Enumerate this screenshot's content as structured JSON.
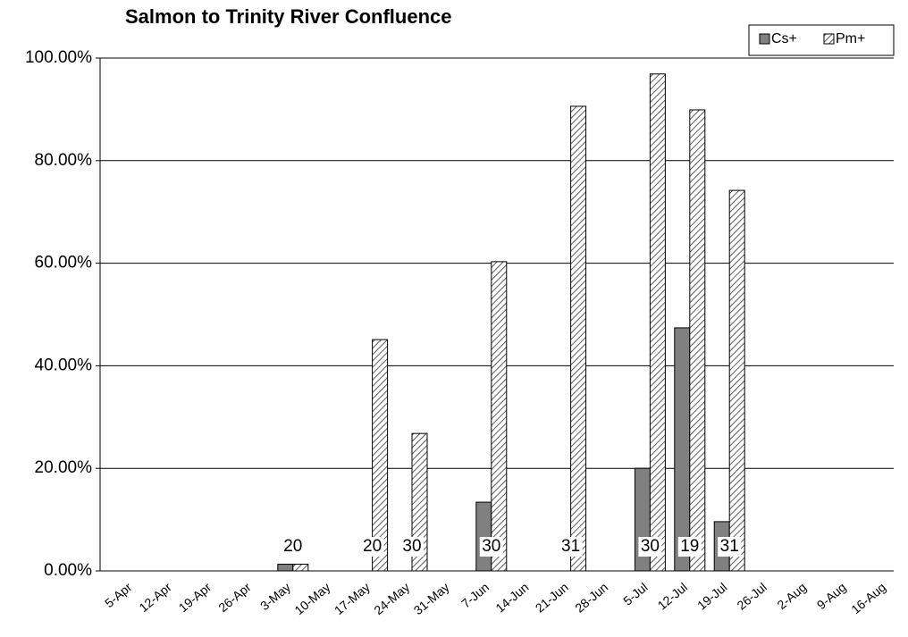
{
  "chart_data": {
    "type": "bar",
    "title": "Salmon to Trinity River Confluence",
    "categories": [
      "5-Apr",
      "12-Apr",
      "19-Apr",
      "26-Apr",
      "3-May",
      "10-May",
      "17-May",
      "24-May",
      "31-May",
      "7-Jun",
      "14-Jun",
      "21-Jun",
      "28-Jun",
      "5-Jul",
      "12-Jul",
      "19-Jul",
      "26-Jul",
      "2-Aug",
      "9-Aug",
      "16-Aug"
    ],
    "series": [
      {
        "name": "Cs+",
        "color": "#808080",
        "values": [
          null,
          null,
          null,
          null,
          1.3,
          null,
          0,
          0,
          null,
          13.4,
          null,
          0,
          null,
          20.0,
          47.4,
          9.6,
          null,
          null,
          null,
          null
        ]
      },
      {
        "name": "Pm+",
        "color": "#ffffff",
        "pattern": "diagonal-hatch",
        "values": [
          null,
          null,
          null,
          null,
          1.3,
          null,
          45.1,
          26.8,
          null,
          60.3,
          null,
          90.6,
          null,
          96.9,
          89.9,
          74.2,
          null,
          null,
          null,
          null
        ]
      }
    ],
    "sample_sizes": [
      null,
      null,
      null,
      null,
      20,
      null,
      20,
      30,
      null,
      30,
      null,
      31,
      null,
      30,
      19,
      31,
      null,
      null,
      null,
      null
    ],
    "ylim": [
      0,
      100
    ],
    "yticks": [
      {
        "value": 0,
        "label": "0.00%"
      },
      {
        "value": 20,
        "label": "20.00%"
      },
      {
        "value": 40,
        "label": "40.00%"
      },
      {
        "value": 60,
        "label": "60.00%"
      },
      {
        "value": 80,
        "label": "80.00%"
      },
      {
        "value": 100,
        "label": "100.00%"
      }
    ],
    "grid": true,
    "legend": "top-right"
  }
}
